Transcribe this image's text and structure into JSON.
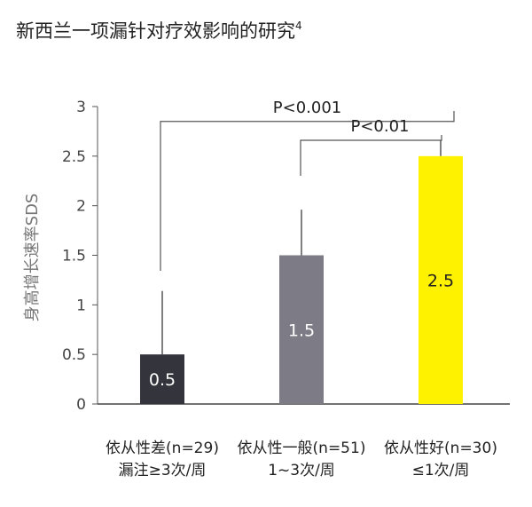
{
  "chart_data": {
    "type": "bar",
    "title": "新西兰一项漏针对疗效影响的研究",
    "title_superscript": "4",
    "ylabel": "身高增长速率SDS",
    "ylim": [
      0,
      3
    ],
    "yticks": [
      "0",
      "0.5",
      "1",
      "1.5",
      "2",
      "2.5",
      "3"
    ],
    "grid": false,
    "categories": [
      {
        "line1": "依从性差(n=29)",
        "line2": "漏注≥3次/周"
      },
      {
        "line1": "依从性一般(n=51)",
        "line2": "1~3次/周"
      },
      {
        "line1": "依从性好(n=30)",
        "line2": "≤1次/周"
      }
    ],
    "values": [
      0.5,
      1.5,
      2.5
    ],
    "value_labels": [
      "0.5",
      "1.5",
      "2.5"
    ],
    "error_upper": [
      1.14,
      1.96,
      2.66
    ],
    "colors": [
      "#34343c",
      "#7d7c86",
      "#fff200"
    ],
    "label_colors": [
      "#ffffff",
      "#ffffff",
      "#222222"
    ],
    "error_color": "#555555",
    "comparisons": [
      {
        "from": 0,
        "to": 2,
        "label": "P<0.001",
        "top": 2.85
      },
      {
        "from": 1,
        "to": 2,
        "label": "P<0.01",
        "top": 2.66
      }
    ]
  }
}
